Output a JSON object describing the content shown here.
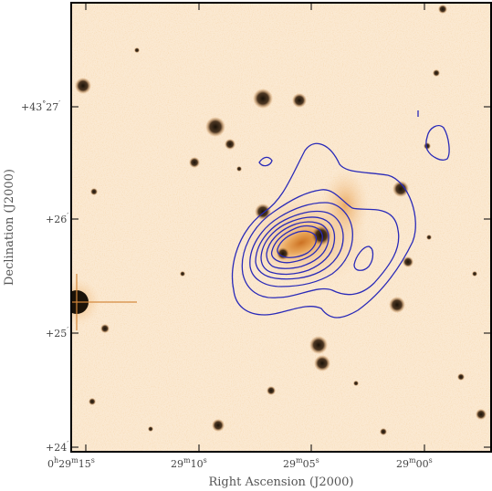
{
  "figure": {
    "x_axis_label": "Right Ascension (J2000)",
    "y_axis_label": "Declination (J2000)",
    "x_ticks": [
      {
        "prefix": "0",
        "h": "h",
        "min": "29",
        "m": "m",
        "sec": "15",
        "s": "s"
      },
      {
        "prefix": "",
        "h": "",
        "min": "29",
        "m": "m",
        "sec": "10",
        "s": "s"
      },
      {
        "prefix": "",
        "h": "",
        "min": "29",
        "m": "m",
        "sec": "05",
        "s": "s"
      },
      {
        "prefix": "",
        "h": "",
        "min": "29",
        "m": "m",
        "sec": "00",
        "s": "s"
      }
    ],
    "y_ticks": [
      {
        "deg": "+43",
        "degsym": "°",
        "min": "27",
        "arcmin": "′"
      },
      {
        "deg": "+26",
        "degsym": "",
        "min": "",
        "arcmin": "′"
      },
      {
        "deg": "+25",
        "degsym": "",
        "min": "",
        "arcmin": "′"
      },
      {
        "deg": "+24",
        "degsym": "",
        "min": "",
        "arcmin": "′"
      }
    ],
    "colors": {
      "background": "#fbe9d2",
      "emission": "#e0913a",
      "source": "#1a1208",
      "contour": "#2a2ab8",
      "frame": "#000000"
    }
  }
}
